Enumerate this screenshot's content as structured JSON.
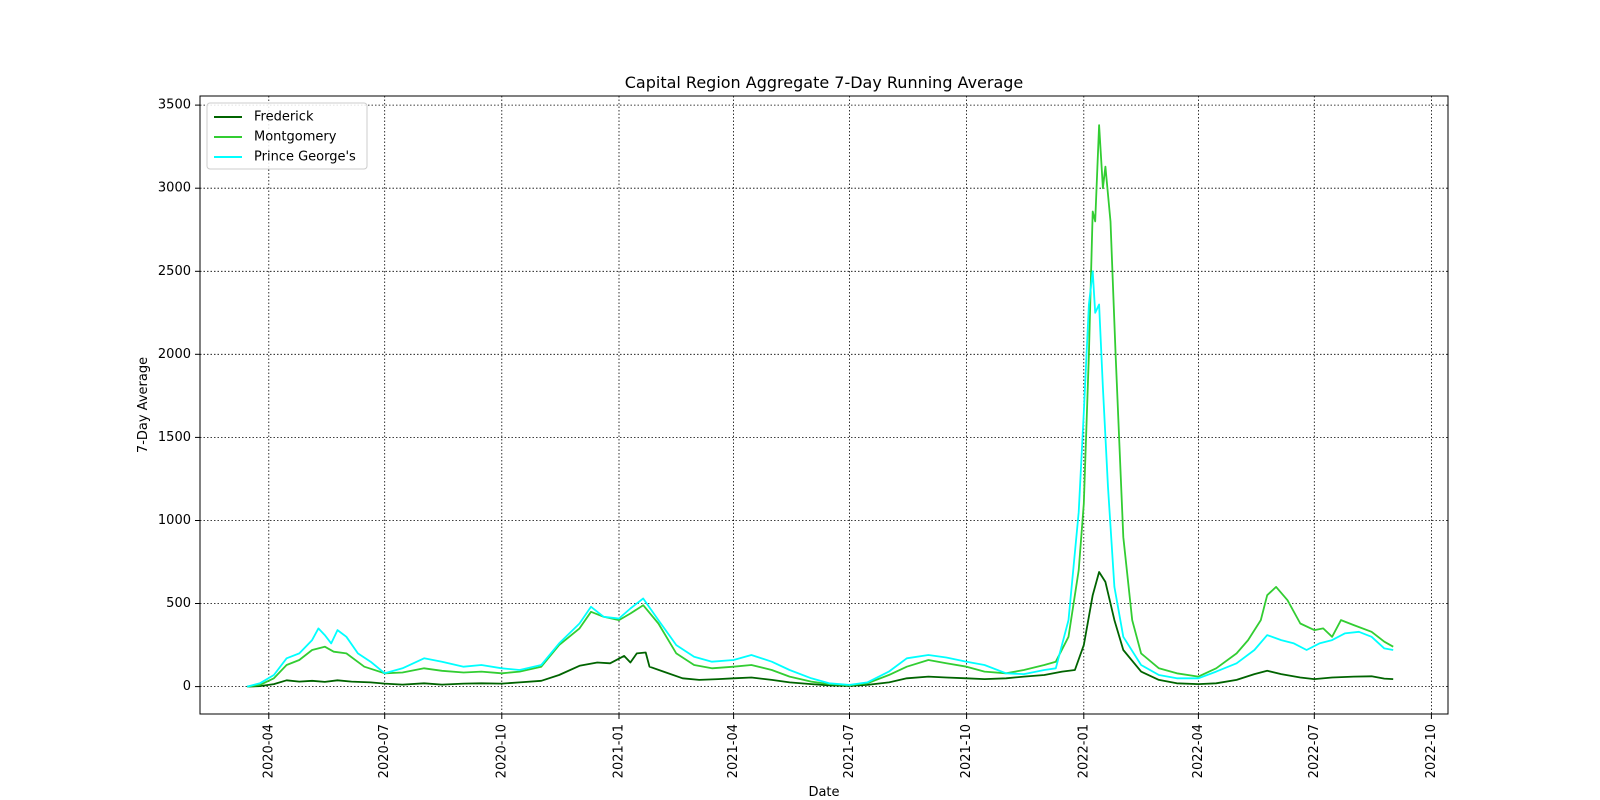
{
  "chart_data": {
    "type": "line",
    "title": "Capital Region Aggregate 7-Day Running Average",
    "xlabel": "Date",
    "ylabel": "7-Day Average",
    "xlim": [
      "2020-02-07",
      "2022-10-14"
    ],
    "ylim": [
      -165,
      3555
    ],
    "x_ticks": [
      "2020-04",
      "2020-07",
      "2020-10",
      "2021-01",
      "2021-04",
      "2021-07",
      "2021-10",
      "2022-01",
      "2022-04",
      "2022-07",
      "2022-10"
    ],
    "y_ticks": [
      0,
      500,
      1000,
      1500,
      2000,
      2500,
      3000,
      3500
    ],
    "grid": true,
    "legend_position": "top-left",
    "series": [
      {
        "name": "Frederick",
        "color": "#006400",
        "points": [
          [
            "2020-03-15",
            0
          ],
          [
            "2020-03-25",
            3
          ],
          [
            "2020-04-05",
            15
          ],
          [
            "2020-04-15",
            38
          ],
          [
            "2020-04-25",
            30
          ],
          [
            "2020-05-05",
            35
          ],
          [
            "2020-05-15",
            28
          ],
          [
            "2020-05-25",
            38
          ],
          [
            "2020-06-05",
            30
          ],
          [
            "2020-06-20",
            25
          ],
          [
            "2020-07-01",
            18
          ],
          [
            "2020-07-15",
            12
          ],
          [
            "2020-08-01",
            20
          ],
          [
            "2020-08-15",
            12
          ],
          [
            "2020-09-01",
            18
          ],
          [
            "2020-09-15",
            20
          ],
          [
            "2020-10-01",
            18
          ],
          [
            "2020-10-15",
            25
          ],
          [
            "2020-11-01",
            35
          ],
          [
            "2020-11-15",
            70
          ],
          [
            "2020-12-01",
            125
          ],
          [
            "2020-12-15",
            145
          ],
          [
            "2020-12-25",
            140
          ],
          [
            "2021-01-05",
            185
          ],
          [
            "2021-01-10",
            145
          ],
          [
            "2021-01-15",
            200
          ],
          [
            "2021-01-22",
            205
          ],
          [
            "2021-01-25",
            120
          ],
          [
            "2021-02-05",
            90
          ],
          [
            "2021-02-20",
            50
          ],
          [
            "2021-03-05",
            40
          ],
          [
            "2021-03-20",
            45
          ],
          [
            "2021-04-01",
            50
          ],
          [
            "2021-04-15",
            55
          ],
          [
            "2021-05-01",
            40
          ],
          [
            "2021-05-15",
            25
          ],
          [
            "2021-06-01",
            15
          ],
          [
            "2021-06-15",
            8
          ],
          [
            "2021-07-01",
            5
          ],
          [
            "2021-07-15",
            10
          ],
          [
            "2021-08-01",
            25
          ],
          [
            "2021-08-15",
            50
          ],
          [
            "2021-09-01",
            60
          ],
          [
            "2021-09-15",
            55
          ],
          [
            "2021-10-01",
            50
          ],
          [
            "2021-10-15",
            45
          ],
          [
            "2021-11-01",
            50
          ],
          [
            "2021-11-15",
            60
          ],
          [
            "2021-12-01",
            70
          ],
          [
            "2021-12-15",
            90
          ],
          [
            "2021-12-25",
            100
          ],
          [
            "2022-01-01",
            250
          ],
          [
            "2022-01-08",
            550
          ],
          [
            "2022-01-13",
            690
          ],
          [
            "2022-01-18",
            630
          ],
          [
            "2022-01-25",
            400
          ],
          [
            "2022-02-01",
            220
          ],
          [
            "2022-02-15",
            90
          ],
          [
            "2022-03-01",
            40
          ],
          [
            "2022-03-15",
            20
          ],
          [
            "2022-04-01",
            15
          ],
          [
            "2022-04-15",
            20
          ],
          [
            "2022-05-01",
            40
          ],
          [
            "2022-05-15",
            75
          ],
          [
            "2022-05-25",
            95
          ],
          [
            "2022-06-05",
            75
          ],
          [
            "2022-06-20",
            55
          ],
          [
            "2022-07-01",
            45
          ],
          [
            "2022-07-15",
            55
          ],
          [
            "2022-08-01",
            60
          ],
          [
            "2022-08-15",
            62
          ],
          [
            "2022-08-25",
            48
          ],
          [
            "2022-09-01",
            45
          ]
        ]
      },
      {
        "name": "Montgomery",
        "color": "#32cd32",
        "points": [
          [
            "2020-03-15",
            0
          ],
          [
            "2020-03-25",
            10
          ],
          [
            "2020-04-05",
            50
          ],
          [
            "2020-04-15",
            130
          ],
          [
            "2020-04-25",
            160
          ],
          [
            "2020-05-05",
            220
          ],
          [
            "2020-05-15",
            240
          ],
          [
            "2020-05-22",
            210
          ],
          [
            "2020-06-01",
            200
          ],
          [
            "2020-06-15",
            120
          ],
          [
            "2020-07-01",
            80
          ],
          [
            "2020-07-15",
            85
          ],
          [
            "2020-08-01",
            110
          ],
          [
            "2020-08-15",
            95
          ],
          [
            "2020-09-01",
            85
          ],
          [
            "2020-09-15",
            90
          ],
          [
            "2020-10-01",
            80
          ],
          [
            "2020-10-15",
            90
          ],
          [
            "2020-11-01",
            120
          ],
          [
            "2020-11-15",
            250
          ],
          [
            "2020-12-01",
            350
          ],
          [
            "2020-12-10",
            450
          ],
          [
            "2020-12-20",
            420
          ],
          [
            "2021-01-01",
            400
          ],
          [
            "2021-01-10",
            440
          ],
          [
            "2021-01-20",
            490
          ],
          [
            "2021-02-01",
            380
          ],
          [
            "2021-02-15",
            200
          ],
          [
            "2021-03-01",
            130
          ],
          [
            "2021-03-15",
            110
          ],
          [
            "2021-04-01",
            120
          ],
          [
            "2021-04-15",
            130
          ],
          [
            "2021-05-01",
            100
          ],
          [
            "2021-05-15",
            60
          ],
          [
            "2021-06-01",
            30
          ],
          [
            "2021-06-15",
            15
          ],
          [
            "2021-07-01",
            8
          ],
          [
            "2021-07-15",
            20
          ],
          [
            "2021-08-01",
            70
          ],
          [
            "2021-08-15",
            120
          ],
          [
            "2021-09-01",
            160
          ],
          [
            "2021-09-15",
            140
          ],
          [
            "2021-10-01",
            120
          ],
          [
            "2021-10-15",
            90
          ],
          [
            "2021-11-01",
            80
          ],
          [
            "2021-11-15",
            100
          ],
          [
            "2021-12-01",
            130
          ],
          [
            "2021-12-10",
            150
          ],
          [
            "2021-12-20",
            300
          ],
          [
            "2021-12-28",
            700
          ],
          [
            "2022-01-01",
            1100
          ],
          [
            "2022-01-05",
            2000
          ],
          [
            "2022-01-08",
            2860
          ],
          [
            "2022-01-10",
            2800
          ],
          [
            "2022-01-13",
            3380
          ],
          [
            "2022-01-16",
            3000
          ],
          [
            "2022-01-18",
            3130
          ],
          [
            "2022-01-22",
            2800
          ],
          [
            "2022-01-26",
            2000
          ],
          [
            "2022-02-01",
            900
          ],
          [
            "2022-02-08",
            400
          ],
          [
            "2022-02-15",
            200
          ],
          [
            "2022-03-01",
            110
          ],
          [
            "2022-03-15",
            80
          ],
          [
            "2022-04-01",
            60
          ],
          [
            "2022-04-15",
            110
          ],
          [
            "2022-05-01",
            200
          ],
          [
            "2022-05-10",
            280
          ],
          [
            "2022-05-20",
            400
          ],
          [
            "2022-05-25",
            550
          ],
          [
            "2022-06-01",
            600
          ],
          [
            "2022-06-10",
            520
          ],
          [
            "2022-06-20",
            380
          ],
          [
            "2022-07-01",
            340
          ],
          [
            "2022-07-08",
            350
          ],
          [
            "2022-07-15",
            300
          ],
          [
            "2022-07-22",
            400
          ],
          [
            "2022-08-01",
            370
          ],
          [
            "2022-08-15",
            330
          ],
          [
            "2022-08-25",
            270
          ],
          [
            "2022-09-01",
            240
          ]
        ]
      },
      {
        "name": "Prince George's",
        "color": "#00ffff",
        "points": [
          [
            "2020-03-15",
            0
          ],
          [
            "2020-03-25",
            20
          ],
          [
            "2020-04-05",
            70
          ],
          [
            "2020-04-15",
            170
          ],
          [
            "2020-04-25",
            200
          ],
          [
            "2020-05-05",
            280
          ],
          [
            "2020-05-10",
            350
          ],
          [
            "2020-05-15",
            310
          ],
          [
            "2020-05-20",
            260
          ],
          [
            "2020-05-25",
            340
          ],
          [
            "2020-06-01",
            300
          ],
          [
            "2020-06-10",
            200
          ],
          [
            "2020-06-20",
            150
          ],
          [
            "2020-07-01",
            80
          ],
          [
            "2020-07-15",
            110
          ],
          [
            "2020-08-01",
            170
          ],
          [
            "2020-08-15",
            150
          ],
          [
            "2020-09-01",
            120
          ],
          [
            "2020-09-15",
            130
          ],
          [
            "2020-10-01",
            110
          ],
          [
            "2020-10-15",
            100
          ],
          [
            "2020-11-01",
            130
          ],
          [
            "2020-11-15",
            260
          ],
          [
            "2020-12-01",
            380
          ],
          [
            "2020-12-10",
            480
          ],
          [
            "2020-12-20",
            420
          ],
          [
            "2021-01-01",
            410
          ],
          [
            "2021-01-10",
            470
          ],
          [
            "2021-01-20",
            530
          ],
          [
            "2021-02-01",
            400
          ],
          [
            "2021-02-15",
            250
          ],
          [
            "2021-03-01",
            180
          ],
          [
            "2021-03-15",
            150
          ],
          [
            "2021-04-01",
            160
          ],
          [
            "2021-04-15",
            190
          ],
          [
            "2021-05-01",
            150
          ],
          [
            "2021-05-15",
            100
          ],
          [
            "2021-06-01",
            50
          ],
          [
            "2021-06-15",
            20
          ],
          [
            "2021-07-01",
            10
          ],
          [
            "2021-07-15",
            25
          ],
          [
            "2021-08-01",
            90
          ],
          [
            "2021-08-15",
            170
          ],
          [
            "2021-09-01",
            190
          ],
          [
            "2021-09-15",
            175
          ],
          [
            "2021-10-01",
            150
          ],
          [
            "2021-10-15",
            130
          ],
          [
            "2021-11-01",
            80
          ],
          [
            "2021-11-15",
            75
          ],
          [
            "2021-12-01",
            100
          ],
          [
            "2021-12-10",
            110
          ],
          [
            "2021-12-20",
            400
          ],
          [
            "2021-12-28",
            1050
          ],
          [
            "2022-01-01",
            1650
          ],
          [
            "2022-01-05",
            2300
          ],
          [
            "2022-01-08",
            2500
          ],
          [
            "2022-01-10",
            2250
          ],
          [
            "2022-01-13",
            2300
          ],
          [
            "2022-01-16",
            1800
          ],
          [
            "2022-01-20",
            1200
          ],
          [
            "2022-01-25",
            600
          ],
          [
            "2022-02-01",
            300
          ],
          [
            "2022-02-15",
            130
          ],
          [
            "2022-03-01",
            70
          ],
          [
            "2022-03-15",
            50
          ],
          [
            "2022-04-01",
            50
          ],
          [
            "2022-04-15",
            90
          ],
          [
            "2022-05-01",
            140
          ],
          [
            "2022-05-15",
            220
          ],
          [
            "2022-05-25",
            310
          ],
          [
            "2022-06-05",
            280
          ],
          [
            "2022-06-15",
            260
          ],
          [
            "2022-06-25",
            220
          ],
          [
            "2022-07-05",
            260
          ],
          [
            "2022-07-15",
            280
          ],
          [
            "2022-07-25",
            320
          ],
          [
            "2022-08-05",
            330
          ],
          [
            "2022-08-15",
            300
          ],
          [
            "2022-08-25",
            230
          ],
          [
            "2022-09-01",
            220
          ]
        ]
      }
    ]
  }
}
